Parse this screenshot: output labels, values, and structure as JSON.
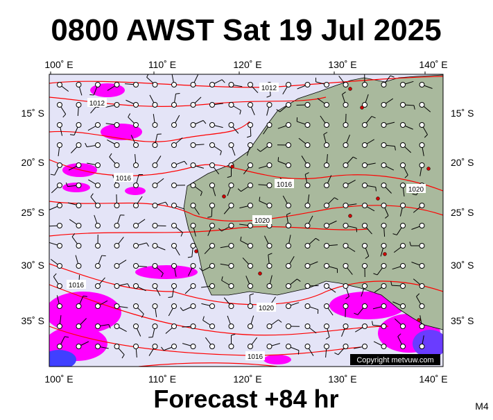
{
  "header": {
    "title": "0800 AWST Sat 19 Jul 2025"
  },
  "map": {
    "top_longitude_labels": [
      "100˚ E",
      "110˚ E",
      "120˚ E",
      "130˚ E",
      "140˚ E"
    ],
    "bottom_longitude_labels": [
      "100˚ E",
      "110˚ E",
      "120˚ E",
      "130˚ E",
      "140˚ E"
    ],
    "left_latitude_labels": [
      "15˚ S",
      "20˚ S",
      "25˚ S",
      "30˚ S",
      "35˚ S"
    ],
    "right_latitude_labels": [
      "15˚ S",
      "20˚ S",
      "25˚ S",
      "30˚ S",
      "35˚ S"
    ],
    "isobar_labels": [
      "1012",
      "1012",
      "1016",
      "1016",
      "1020",
      "1020",
      "1016",
      "1020",
      "1016"
    ],
    "copyright": "Copyright metvuw.com"
  },
  "footer": {
    "forecast": "Forecast +84 hr",
    "code": "M4"
  }
}
